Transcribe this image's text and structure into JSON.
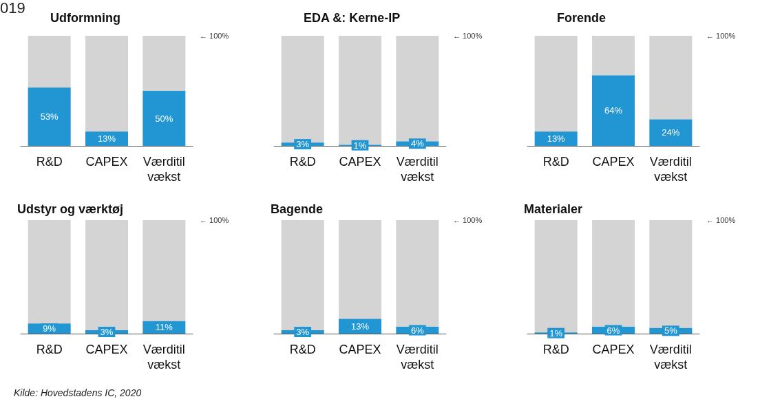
{
  "chart_data": [
    {
      "type": "bar",
      "title": "Udformning",
      "stacked": true,
      "categories": [
        "R&D",
        "CAPEX",
        "Værditilvækst"
      ],
      "ylim": [
        0,
        100
      ],
      "annotations": [
        "← 100%",
        "019"
      ],
      "series": [
        {
          "color": "#2196d3",
          "values": [
            53,
            13,
            50
          ],
          "value_labels": [
            "53%",
            "13%",
            "50%"
          ]
        },
        {
          "color": "#d4d4d4",
          "values": [
            47,
            87,
            50
          ]
        }
      ]
    },
    {
      "type": "bar",
      "title": "EDA &: Kerne-IP",
      "stacked": true,
      "categories": [
        "R&D",
        "CAPEX",
        "Værditilvækst"
      ],
      "ylim": [
        0,
        100
      ],
      "annotations": [
        "← 100%"
      ],
      "series": [
        {
          "color": "#2196d3",
          "values": [
            3,
            1,
            4
          ],
          "value_labels": [
            "3%",
            "1%",
            "4%"
          ]
        },
        {
          "color": "#d4d4d4",
          "values": [
            97,
            99,
            96
          ]
        }
      ]
    },
    {
      "type": "bar",
      "title": "Forende",
      "stacked": true,
      "categories": [
        "R&D",
        "CAPEX",
        "Værditilvækst"
      ],
      "ylim": [
        0,
        100
      ],
      "annotations": [
        "← 100%"
      ],
      "series": [
        {
          "color": "#2196d3",
          "values": [
            13,
            64,
            24
          ],
          "value_labels": [
            "13%",
            "64%",
            "24%"
          ]
        },
        {
          "color": "#d4d4d4",
          "values": [
            87,
            36,
            76
          ]
        }
      ]
    },
    {
      "type": "bar",
      "title": "Udstyr og værktøj",
      "stacked": true,
      "categories": [
        "R&D",
        "CAPEX",
        "Værditilvækst"
      ],
      "ylim": [
        0,
        100
      ],
      "annotations": [
        "← 100%",
        "Kilde: Hovedstadens IC, 2020"
      ],
      "series": [
        {
          "color": "#2196d3",
          "values": [
            9,
            3,
            11
          ],
          "value_labels": [
            "9%",
            "3%",
            "11%"
          ]
        },
        {
          "color": "#d4d4d4",
          "values": [
            91,
            97,
            89
          ]
        }
      ]
    },
    {
      "type": "bar",
      "title": "Bagende",
      "stacked": true,
      "categories": [
        "R&D",
        "CAPEX",
        "Værditilvækst"
      ],
      "ylim": [
        0,
        100
      ],
      "annotations": [
        "← 100%"
      ],
      "series": [
        {
          "color": "#2196d3",
          "values": [
            3,
            13,
            6
          ],
          "value_labels": [
            "3%",
            "13%",
            "6%"
          ]
        },
        {
          "color": "#d4d4d4",
          "values": [
            97,
            87,
            94
          ]
        }
      ]
    },
    {
      "type": "bar",
      "title": "Materialer",
      "stacked": true,
      "categories": [
        "R&D",
        "CAPEX",
        "Værditilvækst"
      ],
      "ylim": [
        0,
        100
      ],
      "annotations": [
        "← 100%"
      ],
      "series": [
        {
          "color": "#2196d3",
          "values": [
            1,
            6,
            5
          ],
          "value_labels": [
            "1%",
            "6%",
            "5%"
          ]
        },
        {
          "color": "#d4d4d4",
          "values": [
            99,
            94,
            95
          ]
        }
      ]
    }
  ]
}
